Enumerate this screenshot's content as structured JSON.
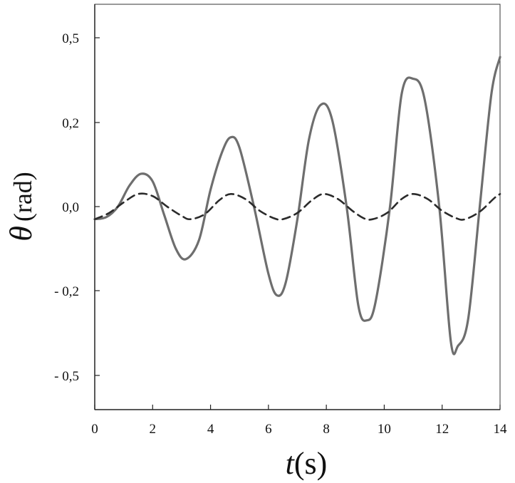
{
  "chart_data": {
    "type": "line",
    "xlabel_var": "t",
    "xlabel_unit": "(s)",
    "ylabel_var": "θ",
    "ylabel_unit": "(rad)",
    "xlim": [
      0,
      14
    ],
    "x_ticks": [
      {
        "value": 0,
        "label": "0"
      },
      {
        "value": 2,
        "label": "2"
      },
      {
        "value": 4,
        "label": "4"
      },
      {
        "value": 6,
        "label": "6"
      },
      {
        "value": 8,
        "label": "8"
      },
      {
        "value": 10,
        "label": "10"
      },
      {
        "value": 12,
        "label": "12"
      },
      {
        "value": 14,
        "label": "14"
      }
    ],
    "y_ticks": [
      {
        "value": 0.5,
        "label": "0,5"
      },
      {
        "value": 0.2,
        "label": "0,2"
      },
      {
        "value": 0.0,
        "label": "0,0"
      },
      {
        "value": -0.2,
        "label": "- 0,2"
      },
      {
        "value": -0.5,
        "label": "- 0,5"
      }
    ],
    "grid": false,
    "legend": "none",
    "series": [
      {
        "style": "solid",
        "color": "#6e6e6e",
        "points": [
          [
            0,
            -0.03
          ],
          [
            0.4,
            -0.025
          ],
          [
            0.8,
            0.0
          ],
          [
            1.2,
            0.05
          ],
          [
            1.6,
            0.078
          ],
          [
            2.0,
            0.06
          ],
          [
            2.4,
            -0.02
          ],
          [
            2.8,
            -0.1
          ],
          [
            3.15,
            -0.125
          ],
          [
            3.6,
            -0.08
          ],
          [
            4.0,
            0.04
          ],
          [
            4.4,
            0.13
          ],
          [
            4.7,
            0.165
          ],
          [
            5.0,
            0.14
          ],
          [
            5.5,
            0.0
          ],
          [
            6.0,
            -0.16
          ],
          [
            6.3,
            -0.217
          ],
          [
            6.6,
            -0.18
          ],
          [
            7.0,
            -0.03
          ],
          [
            7.4,
            0.16
          ],
          [
            7.8,
            0.262
          ],
          [
            8.2,
            0.21
          ],
          [
            8.7,
            0.0
          ],
          [
            9.1,
            -0.25
          ],
          [
            9.4,
            -0.305
          ],
          [
            9.7,
            -0.24
          ],
          [
            10.2,
            0.0
          ],
          [
            10.6,
            0.3
          ],
          [
            11.0,
            0.355
          ],
          [
            11.4,
            0.28
          ],
          [
            11.9,
            0.0
          ],
          [
            12.3,
            -0.38
          ],
          [
            12.55,
            -0.395
          ],
          [
            12.9,
            -0.3
          ],
          [
            13.3,
            0.0
          ],
          [
            13.7,
            0.3
          ],
          [
            14.0,
            0.432
          ]
        ]
      },
      {
        "style": "dashed",
        "color": "#2b2b2b",
        "points": [
          [
            0,
            -0.03
          ],
          [
            0.5,
            -0.015
          ],
          [
            1.0,
            0.01
          ],
          [
            1.5,
            0.03
          ],
          [
            2.0,
            0.025
          ],
          [
            2.5,
            0.0
          ],
          [
            3.0,
            -0.022
          ],
          [
            3.3,
            -0.03
          ],
          [
            3.8,
            -0.018
          ],
          [
            4.3,
            0.015
          ],
          [
            4.7,
            0.03
          ],
          [
            5.2,
            0.018
          ],
          [
            5.7,
            -0.01
          ],
          [
            6.2,
            -0.028
          ],
          [
            6.5,
            -0.03
          ],
          [
            7.0,
            -0.015
          ],
          [
            7.5,
            0.015
          ],
          [
            7.9,
            0.03
          ],
          [
            8.4,
            0.018
          ],
          [
            8.9,
            -0.01
          ],
          [
            9.3,
            -0.028
          ],
          [
            9.6,
            -0.03
          ],
          [
            10.1,
            -0.015
          ],
          [
            10.6,
            0.018
          ],
          [
            11.0,
            0.03
          ],
          [
            11.5,
            0.018
          ],
          [
            12.0,
            -0.01
          ],
          [
            12.5,
            -0.028
          ],
          [
            12.8,
            -0.03
          ],
          [
            13.3,
            -0.012
          ],
          [
            13.8,
            0.02
          ],
          [
            14.0,
            0.03
          ]
        ]
      }
    ]
  }
}
